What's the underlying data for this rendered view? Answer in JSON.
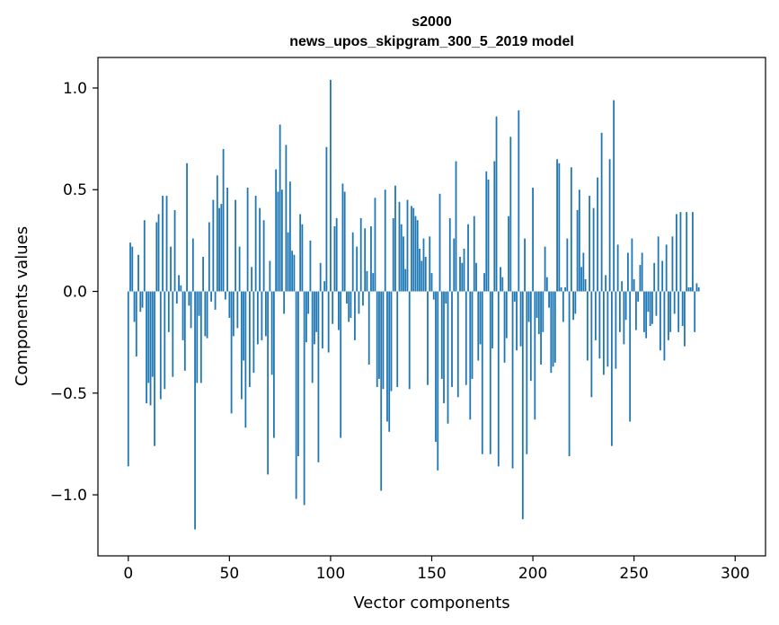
{
  "chart_data": {
    "type": "bar",
    "title_line1": "s2000",
    "title_line2": "news_upos_skipgram_300_5_2019 model",
    "xlabel": "Vector components",
    "ylabel": "Components values",
    "xlim": [
      -15,
      315
    ],
    "ylim": [
      -1.3,
      1.15
    ],
    "xticks": [
      0,
      50,
      100,
      150,
      200,
      250,
      300
    ],
    "xtick_labels": [
      "0",
      "50",
      "100",
      "150",
      "200",
      "250",
      "300"
    ],
    "yticks": [
      -1.0,
      -0.5,
      0.0,
      0.5,
      1.0
    ],
    "ytick_labels": [
      "−1.0",
      "−0.5",
      "0.0",
      "0.5",
      "1.0"
    ],
    "grid": false,
    "bar_color": "#1f77b4",
    "values": [
      -0.86,
      0.24,
      0.22,
      -0.15,
      -0.32,
      0.18,
      -0.1,
      -0.08,
      0.35,
      -0.55,
      -0.45,
      -0.56,
      -0.42,
      -0.76,
      0.34,
      0.38,
      -0.53,
      0.47,
      -0.48,
      0.47,
      -0.2,
      0.22,
      -0.42,
      0.4,
      -0.06,
      0.08,
      0.03,
      -0.24,
      -0.39,
      0.63,
      -0.07,
      -0.18,
      0.26,
      -1.17,
      -0.45,
      -0.12,
      -0.45,
      0.17,
      -0.22,
      -0.23,
      0.34,
      -0.05,
      0.45,
      -0.09,
      0.57,
      0.41,
      0.43,
      0.7,
      -0.04,
      0.51,
      -0.13,
      -0.6,
      -0.22,
      0.45,
      -0.18,
      0.22,
      -0.53,
      -0.34,
      -0.67,
      0.51,
      -0.47,
      0.12,
      -0.4,
      0.47,
      -0.26,
      0.41,
      -0.24,
      0.35,
      -0.22,
      -0.9,
      0.15,
      -0.41,
      -0.72,
      0.6,
      0.49,
      0.82,
      0.5,
      -0.11,
      0.72,
      0.29,
      0.54,
      0.2,
      0.18,
      -1.02,
      -0.81,
      0.38,
      0.33,
      -1.05,
      -0.25,
      -0.11,
      0.25,
      -0.45,
      -0.26,
      -0.2,
      -0.84,
      0.14,
      -0.28,
      0.05,
      0.71,
      -0.3,
      1.04,
      -0.16,
      0.32,
      0.36,
      -0.19,
      -0.72,
      0.53,
      0.49,
      -0.06,
      -0.15,
      -0.13,
      0.29,
      -0.24,
      0.22,
      -0.11,
      0.36,
      -0.07,
      0.31,
      0.1,
      -0.36,
      0.32,
      0.09,
      0.46,
      -0.47,
      -0.43,
      -0.98,
      -0.48,
      0.5,
      -0.64,
      -0.69,
      -0.49,
      0.36,
      0.52,
      -0.47,
      0.44,
      0.33,
      0.27,
      0.11,
      0.45,
      -0.48,
      0.42,
      0.41,
      0.37,
      0.35,
      0.21,
      0.15,
      0.26,
      0.17,
      -0.46,
      0.27,
      0.09,
      -0.04,
      -0.74,
      -0.88,
      0.48,
      -0.43,
      -0.55,
      -0.06,
      -0.65,
      0.36,
      -0.47,
      0.26,
      0.64,
      -0.52,
      0.17,
      0.14,
      0.21,
      -0.46,
      0.33,
      -0.63,
      -0.43,
      0.37,
      0.14,
      -0.34,
      -0.26,
      -0.8,
      0.09,
      0.59,
      0.55,
      -0.8,
      -0.28,
      0.64,
      0.86,
      -0.86,
      0.12,
      0.07,
      -0.35,
      -0.23,
      0.37,
      0.76,
      -0.87,
      -0.05,
      -0.29,
      0.89,
      -0.27,
      -1.12,
      0.26,
      -0.8,
      -0.15,
      -0.44,
      0.51,
      -0.63,
      -0.13,
      -0.21,
      -0.36,
      -0.2,
      0.22,
      0.07,
      -0.08,
      -0.4,
      -0.37,
      -0.35,
      0.65,
      0.63,
      0.02,
      -0.15,
      0.02,
      0.26,
      -0.81,
      0.61,
      -0.14,
      -0.11,
      0.4,
      0.5,
      0.12,
      0.19,
      0.06,
      -0.34,
      0.47,
      -0.52,
      0.41,
      -0.24,
      0.56,
      -0.33,
      0.78,
      -0.41,
      0.08,
      -0.37,
      0.65,
      -0.76,
      0.94,
      -0.38,
      0.23,
      -0.2,
      0.05,
      -0.26,
      -0.14,
      0.19,
      -0.64,
      0.26,
      0.06,
      -0.19,
      -0.05,
      0.13,
      0.19,
      -0.2,
      -0.23,
      -0.1,
      -0.17,
      -0.16,
      0.14,
      -0.12,
      0.27,
      -0.29,
      0.15,
      -0.34,
      0.23,
      -0.24,
      -0.2,
      0.27,
      -0.11,
      0.38,
      -0.2,
      0.39,
      -0.17,
      -0.27,
      0.39,
      0.02,
      0.02,
      0.39,
      -0.2,
      0.04,
      0.02
    ]
  }
}
